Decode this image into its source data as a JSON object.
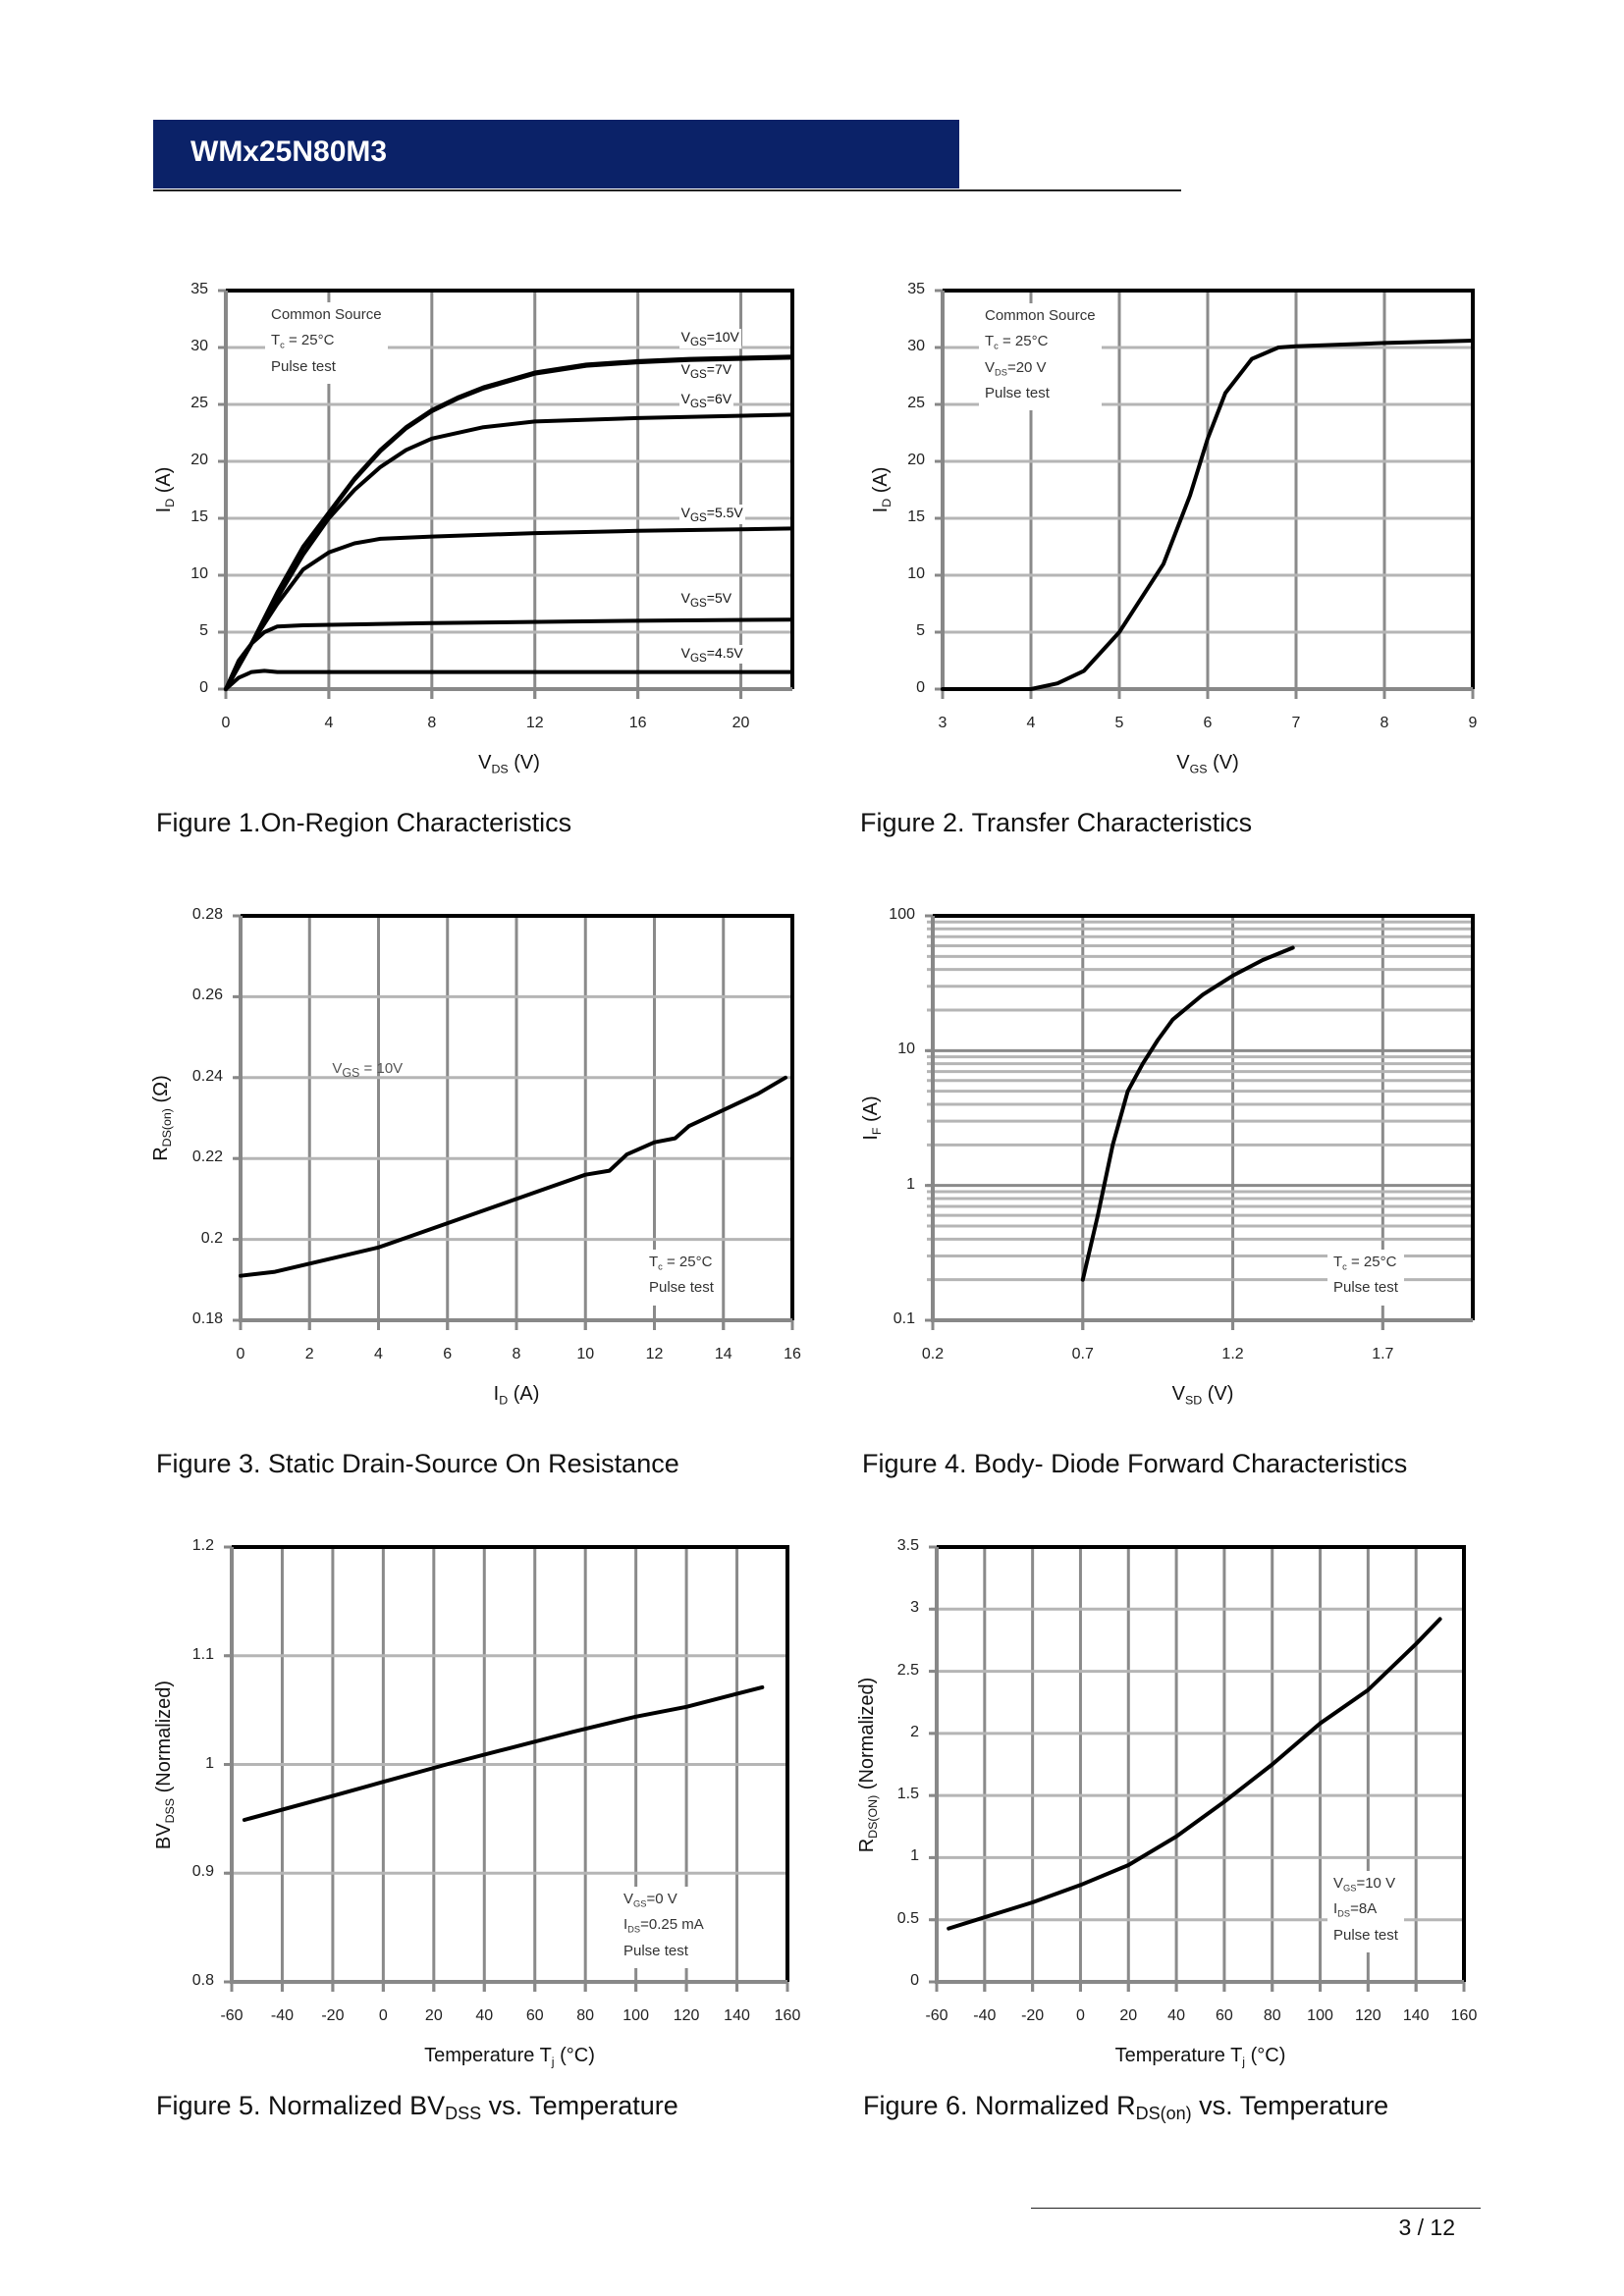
{
  "header": {
    "title": "WMx25N80M3"
  },
  "footer": {
    "page": "3 / 12"
  },
  "chart_data": [
    {
      "type": "line",
      "caption": {
        "t": "Figure 1.On-Region Characteristics",
        "s": "",
        "r": ""
      },
      "xlabel": {
        "t": "V",
        "s": "DS",
        "r": " (V)"
      },
      "ylabel": {
        "t": "I",
        "s": "D",
        "r": " (A)"
      },
      "xlim": [
        0,
        22
      ],
      "ylim": [
        0,
        35
      ],
      "xticks": [
        0,
        4,
        8,
        12,
        16,
        20
      ],
      "yticks": [
        0,
        5,
        10,
        15,
        20,
        25,
        30,
        35
      ],
      "xgrid": [
        4,
        8,
        12,
        16,
        20
      ],
      "ygrid": [
        5,
        10,
        15,
        20,
        25,
        30
      ],
      "annotation": [
        {
          "t": "Common Source",
          "s": "",
          "r": ""
        },
        {
          "t": "T",
          "s": "c",
          "r": " = 25°C"
        },
        {
          "t": "Pulse test",
          "s": "",
          "r": ""
        }
      ],
      "series": [
        {
          "name": {
            "t": "V",
            "s": "GS",
            "r": "=10V"
          },
          "points": [
            [
              0,
              0
            ],
            [
              1,
              4
            ],
            [
              2,
              8.5
            ],
            [
              3,
              12.5
            ],
            [
              4,
              15.5
            ],
            [
              5,
              18.5
            ],
            [
              6,
              21
            ],
            [
              7,
              23
            ],
            [
              8,
              24.5
            ],
            [
              9,
              25.6
            ],
            [
              10,
              26.5
            ],
            [
              12,
              27.8
            ],
            [
              14,
              28.5
            ],
            [
              16,
              28.8
            ],
            [
              18,
              29
            ],
            [
              20,
              29.1
            ],
            [
              22,
              29.2
            ]
          ]
        },
        {
          "name": {
            "t": "V",
            "s": "GS",
            "r": "=7V"
          },
          "points": [
            [
              0,
              0
            ],
            [
              1,
              4
            ],
            [
              2,
              8.4
            ],
            [
              3,
              12.4
            ],
            [
              4,
              15.4
            ],
            [
              5,
              18.4
            ],
            [
              6,
              20.9
            ],
            [
              7,
              22.9
            ],
            [
              8,
              24.4
            ],
            [
              9,
              25.5
            ],
            [
              10,
              26.4
            ],
            [
              12,
              27.7
            ],
            [
              14,
              28.4
            ],
            [
              16,
              28.7
            ],
            [
              18,
              28.9
            ],
            [
              20,
              29
            ],
            [
              22,
              29.1
            ]
          ]
        },
        {
          "name": {
            "t": "V",
            "s": "GS",
            "r": "=6V"
          },
          "points": [
            [
              0,
              0
            ],
            [
              1,
              4
            ],
            [
              2,
              8
            ],
            [
              3,
              11.8
            ],
            [
              4,
              15
            ],
            [
              5,
              17.5
            ],
            [
              6,
              19.5
            ],
            [
              7,
              21
            ],
            [
              8,
              22
            ],
            [
              10,
              23
            ],
            [
              12,
              23.5
            ],
            [
              16,
              23.8
            ],
            [
              22,
              24.1
            ]
          ]
        },
        {
          "name": {
            "t": "V",
            "s": "GS",
            "r": "=5.5V"
          },
          "points": [
            [
              0,
              0
            ],
            [
              1,
              4
            ],
            [
              2,
              7.5
            ],
            [
              3,
              10.5
            ],
            [
              4,
              12
            ],
            [
              5,
              12.8
            ],
            [
              6,
              13.2
            ],
            [
              8,
              13.4
            ],
            [
              12,
              13.7
            ],
            [
              16,
              13.9
            ],
            [
              22,
              14.1
            ]
          ]
        },
        {
          "name": {
            "t": "V",
            "s": "GS",
            "r": "=5V"
          },
          "points": [
            [
              0,
              0
            ],
            [
              0.5,
              2.5
            ],
            [
              1,
              4
            ],
            [
              1.5,
              5
            ],
            [
              2,
              5.5
            ],
            [
              3,
              5.6
            ],
            [
              8,
              5.8
            ],
            [
              16,
              6
            ],
            [
              22,
              6.1
            ]
          ]
        },
        {
          "name": {
            "t": "V",
            "s": "GS",
            "r": "=4.5V"
          },
          "points": [
            [
              0,
              0
            ],
            [
              0.5,
              1
            ],
            [
              1,
              1.5
            ],
            [
              1.5,
              1.6
            ],
            [
              2,
              1.5
            ],
            [
              22,
              1.5
            ]
          ]
        }
      ]
    },
    {
      "type": "line",
      "caption": {
        "t": "Figure 2. Transfer Characteristics",
        "s": "",
        "r": ""
      },
      "xlabel": {
        "t": "V",
        "s": "GS",
        "r": " (V)"
      },
      "ylabel": {
        "t": "I",
        "s": "D",
        "r": " (A)"
      },
      "xlim": [
        3,
        9
      ],
      "ylim": [
        0,
        35
      ],
      "xticks": [
        3,
        4,
        5,
        6,
        7,
        8,
        9
      ],
      "yticks": [
        0,
        5,
        10,
        15,
        20,
        25,
        30,
        35
      ],
      "xgrid": [
        4,
        5,
        6,
        7,
        8
      ],
      "ygrid": [
        5,
        10,
        15,
        20,
        25,
        30
      ],
      "annotation": [
        {
          "t": "Common Source",
          "s": "",
          "r": ""
        },
        {
          "t": "T",
          "s": "c",
          "r": " = 25°C"
        },
        {
          "t": "V",
          "s": "DS",
          "r": "=20 V"
        },
        {
          "t": "Pulse test",
          "s": "",
          "r": ""
        }
      ],
      "series": [
        {
          "name": null,
          "points": [
            [
              3,
              0
            ],
            [
              4,
              0
            ],
            [
              4.3,
              0.5
            ],
            [
              4.6,
              1.6
            ],
            [
              5,
              5
            ],
            [
              5.5,
              11
            ],
            [
              5.8,
              17
            ],
            [
              6,
              22
            ],
            [
              6.2,
              26
            ],
            [
              6.5,
              29
            ],
            [
              6.8,
              30
            ],
            [
              7,
              30.1
            ],
            [
              8,
              30.4
            ],
            [
              9,
              30.6
            ]
          ]
        }
      ]
    },
    {
      "type": "line",
      "caption": {
        "t": "Figure 3. Static Drain-Source On Resistance",
        "s": "",
        "r": ""
      },
      "xlabel": {
        "t": "I",
        "s": "D",
        "r": " (A)"
      },
      "ylabel": {
        "t": "R",
        "s": "DS(on)",
        "r": " (Ω)"
      },
      "xlim": [
        0,
        16
      ],
      "ylim": [
        0.18,
        0.28
      ],
      "xticks": [
        0,
        2,
        4,
        6,
        8,
        10,
        12,
        14,
        16
      ],
      "yticks": [
        0.18,
        0.2,
        0.22,
        0.24,
        0.26,
        0.28
      ],
      "xgrid": [
        2,
        4,
        6,
        8,
        10,
        12,
        14
      ],
      "ygrid": [
        0.2,
        0.22,
        0.24,
        0.26
      ],
      "annotation": [
        {
          "t": "T",
          "s": "c",
          "r": " = 25°C"
        },
        {
          "t": "Pulse test",
          "s": "",
          "r": ""
        }
      ],
      "series": [
        {
          "name": {
            "t": "V",
            "s": "GS",
            "r": " = 10V"
          },
          "points": [
            [
              0,
              0.191
            ],
            [
              1,
              0.192
            ],
            [
              2,
              0.194
            ],
            [
              3,
              0.196
            ],
            [
              4,
              0.198
            ],
            [
              5,
              0.201
            ],
            [
              6,
              0.204
            ],
            [
              7,
              0.207
            ],
            [
              8,
              0.21
            ],
            [
              9,
              0.213
            ],
            [
              10,
              0.216
            ],
            [
              10.7,
              0.217
            ],
            [
              11.2,
              0.221
            ],
            [
              12,
              0.224
            ],
            [
              12.6,
              0.225
            ],
            [
              13,
              0.228
            ],
            [
              14,
              0.232
            ],
            [
              15,
              0.236
            ],
            [
              15.8,
              0.24
            ]
          ]
        }
      ]
    },
    {
      "type": "line",
      "caption": {
        "t": "Figure 4. Body- Diode Forward Characteristics",
        "s": "",
        "r": ""
      },
      "xlabel": {
        "t": "V",
        "s": "SD",
        "r": " (V)"
      },
      "ylabel": {
        "t": "I",
        "s": "F",
        "r": " (A)"
      },
      "xlim": [
        0.2,
        2.0
      ],
      "ylim": [
        0.1,
        100
      ],
      "yscale": "log",
      "xticks": [
        0.2,
        0.7,
        1.2,
        1.7
      ],
      "yticks": [
        0.1,
        1,
        10,
        100
      ],
      "xgrid": [
        0.7,
        1.2,
        1.7
      ],
      "ygrid": [
        0.2,
        0.3,
        0.4,
        0.5,
        0.6,
        0.7,
        0.8,
        0.9,
        1,
        2,
        3,
        4,
        5,
        6,
        7,
        8,
        9,
        10,
        20,
        30,
        40,
        50,
        60,
        70,
        80,
        90
      ],
      "annotation": [
        {
          "t": "T",
          "s": "c",
          "r": " = 25°C"
        },
        {
          "t": "Pulse test",
          "s": "",
          "r": ""
        }
      ],
      "series": [
        {
          "name": null,
          "points": [
            [
              0.7,
              0.2
            ],
            [
              0.75,
              0.6
            ],
            [
              0.8,
              2
            ],
            [
              0.85,
              5
            ],
            [
              0.9,
              8
            ],
            [
              0.95,
              12
            ],
            [
              1.0,
              17
            ],
            [
              1.1,
              26
            ],
            [
              1.2,
              36
            ],
            [
              1.3,
              47
            ],
            [
              1.4,
              58
            ]
          ]
        }
      ]
    },
    {
      "type": "line",
      "caption": {
        "t": "Figure 5. Normalized BV",
        "s": "DSS",
        "r": " vs. Temperature"
      },
      "xlabel": {
        "t": "Temperature T",
        "s": "j",
        "r": " (°C)"
      },
      "ylabel": {
        "t": "BV",
        "s": "DSS",
        "r": " (Normalized)"
      },
      "xlim": [
        -60,
        160
      ],
      "ylim": [
        0.8,
        1.2
      ],
      "xticks": [
        -60,
        -40,
        -20,
        0,
        20,
        40,
        60,
        80,
        100,
        120,
        140,
        160
      ],
      "yticks": [
        0.8,
        0.9,
        1,
        1.1,
        1.2
      ],
      "xgrid": [
        -40,
        -20,
        0,
        20,
        40,
        60,
        80,
        100,
        120,
        140
      ],
      "ygrid": [
        0.9,
        1,
        1.1
      ],
      "annotation": [
        {
          "t": "V",
          "s": "GS",
          "r": "=0 V"
        },
        {
          "t": "I",
          "s": "DS",
          "r": "=0.25 mA"
        },
        {
          "t": "Pulse test",
          "s": "",
          "r": ""
        }
      ],
      "series": [
        {
          "name": null,
          "points": [
            [
              -55,
              0.949
            ],
            [
              -20,
              0.971
            ],
            [
              0,
              0.984
            ],
            [
              25,
              1.0
            ],
            [
              50,
              1.015
            ],
            [
              75,
              1.03
            ],
            [
              100,
              1.044
            ],
            [
              120,
              1.053
            ],
            [
              135,
              1.062
            ],
            [
              150,
              1.071
            ]
          ]
        }
      ]
    },
    {
      "type": "line",
      "caption": {
        "t": "Figure 6. Normalized R",
        "s": "DS(on)",
        "r": " vs. Temperature"
      },
      "xlabel": {
        "t": "Temperature T",
        "s": "j",
        "r": " (°C)"
      },
      "ylabel": {
        "t": "R",
        "s": "DS(ON)",
        "r": " (Normalized)"
      },
      "xlim": [
        -60,
        160
      ],
      "ylim": [
        0,
        3.5
      ],
      "xticks": [
        -60,
        -40,
        -20,
        0,
        20,
        40,
        60,
        80,
        100,
        120,
        140,
        160
      ],
      "yticks": [
        0,
        0.5,
        1,
        1.5,
        2,
        2.5,
        3,
        3.5
      ],
      "xgrid": [
        -40,
        -20,
        0,
        20,
        40,
        60,
        80,
        100,
        120,
        140
      ],
      "ygrid": [
        0.5,
        1,
        1.5,
        2,
        2.5,
        3
      ],
      "annotation": [
        {
          "t": "V",
          "s": "GS",
          "r": "=10 V"
        },
        {
          "t": "I",
          "s": "DS",
          "r": "=8A"
        },
        {
          "t": "Pulse test",
          "s": "",
          "r": ""
        }
      ],
      "series": [
        {
          "name": null,
          "points": [
            [
              -55,
              0.43
            ],
            [
              -40,
              0.52
            ],
            [
              -20,
              0.64
            ],
            [
              0,
              0.78
            ],
            [
              20,
              0.94
            ],
            [
              40,
              1.17
            ],
            [
              60,
              1.45
            ],
            [
              80,
              1.75
            ],
            [
              100,
              2.08
            ],
            [
              120,
              2.35
            ],
            [
              140,
              2.72
            ],
            [
              150,
              2.92
            ]
          ]
        }
      ]
    }
  ]
}
